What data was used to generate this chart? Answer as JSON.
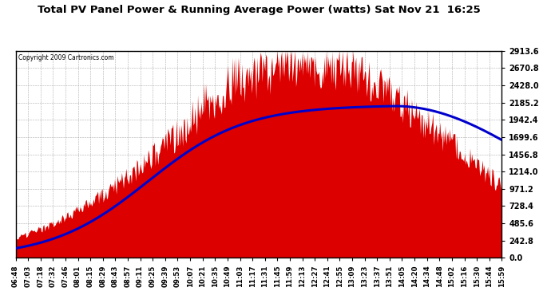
{
  "title": "Total PV Panel Power & Running Average Power (watts) Sat Nov 21  16:25",
  "copyright": "Copyright 2009 Cartronics.com",
  "background_color": "#ffffff",
  "bar_color": "#dd0000",
  "line_color": "#0000cc",
  "yticks": [
    0.0,
    242.8,
    485.6,
    728.4,
    971.2,
    1214.0,
    1456.8,
    1699.6,
    1942.4,
    2185.2,
    2428.0,
    2670.8,
    2913.6
  ],
  "ymax": 2913.6,
  "ymin": 0.0,
  "x_tick_labels": [
    "06:48",
    "07:03",
    "07:18",
    "07:32",
    "07:46",
    "08:01",
    "08:15",
    "08:29",
    "08:43",
    "08:57",
    "09:11",
    "09:25",
    "09:39",
    "09:53",
    "10:07",
    "10:21",
    "10:35",
    "10:49",
    "11:03",
    "11:17",
    "11:31",
    "11:45",
    "11:59",
    "12:13",
    "12:27",
    "12:41",
    "12:55",
    "13:09",
    "13:23",
    "13:37",
    "13:51",
    "14:05",
    "14:20",
    "14:34",
    "14:48",
    "15:02",
    "15:16",
    "15:30",
    "15:44",
    "15:59"
  ]
}
